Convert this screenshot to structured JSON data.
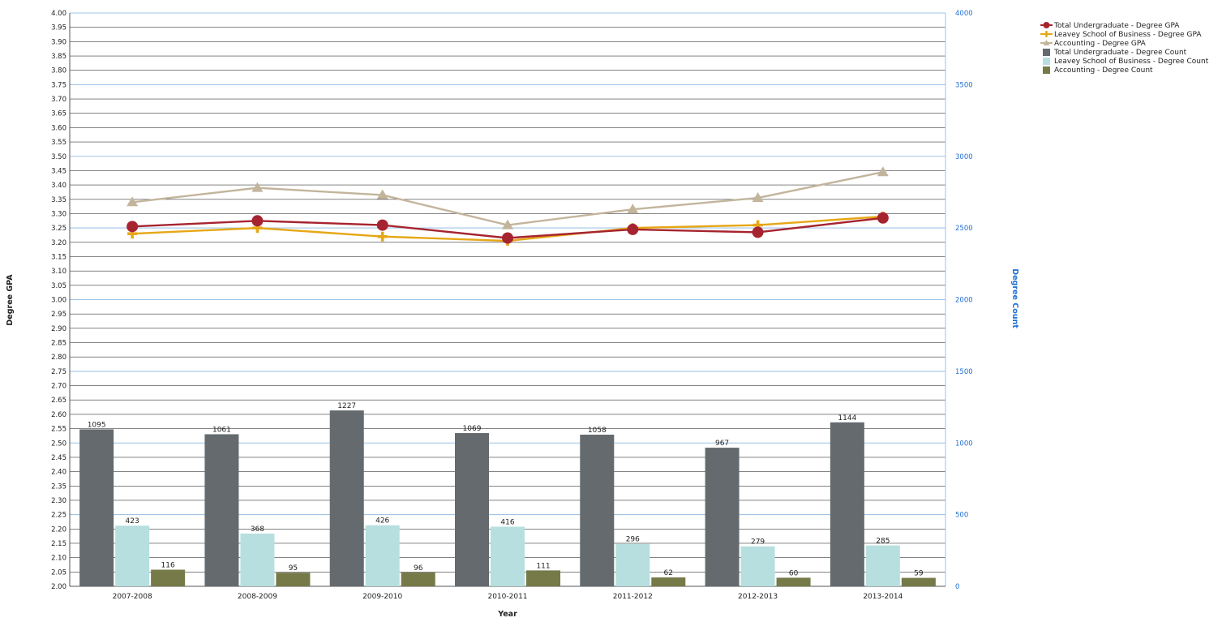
{
  "chart_data": {
    "type": "bar",
    "xlabel": "Year",
    "ylabel": "Degree GPA",
    "y2label": "Degree Count",
    "categories": [
      "2007-2008",
      "2008-2009",
      "2009-2010",
      "2010-2011",
      "2011-2012",
      "2012-2013",
      "2013-2014"
    ],
    "ylim": [
      2.0,
      4.0
    ],
    "y_ticks": [
      "2.00",
      "2.05",
      "2.10",
      "2.15",
      "2.20",
      "2.25",
      "2.30",
      "2.35",
      "2.40",
      "2.45",
      "2.50",
      "2.55",
      "2.60",
      "2.65",
      "2.70",
      "2.75",
      "2.80",
      "2.85",
      "2.90",
      "2.95",
      "3.00",
      "3.05",
      "3.10",
      "3.15",
      "3.20",
      "3.25",
      "3.30",
      "3.35",
      "3.40",
      "3.45",
      "3.50",
      "3.55",
      "3.60",
      "3.65",
      "3.70",
      "3.75",
      "3.80",
      "3.85",
      "3.90",
      "3.95",
      "4.00"
    ],
    "y2lim": [
      0,
      4000
    ],
    "y2_ticks": [
      "0",
      "500",
      "1000",
      "1500",
      "2000",
      "2500",
      "3000",
      "3500",
      "4000"
    ],
    "grid": true,
    "legend_position": "top-right",
    "bar_series": [
      {
        "name": "Total Undergraduate - Degree Count",
        "color": "#646a6d",
        "values": [
          1095,
          1061,
          1227,
          1069,
          1058,
          967,
          1144
        ]
      },
      {
        "name": "Leavey School of Business - Degree Count",
        "color": "#b7dfdf",
        "values": [
          423,
          368,
          426,
          416,
          296,
          279,
          285
        ]
      },
      {
        "name": "Accounting - Degree Count",
        "color": "#757a48",
        "values": [
          116,
          95,
          96,
          111,
          62,
          60,
          59
        ]
      }
    ],
    "line_series": [
      {
        "name": "Total Undergraduate - Degree GPA",
        "color": "#a6242f",
        "marker": "circle",
        "values": [
          3.255,
          3.275,
          3.26,
          3.215,
          3.245,
          3.235,
          3.285
        ]
      },
      {
        "name": "Leavey School of Business - Degree GPA",
        "color": "#e6a715",
        "marker": "plus",
        "values": [
          3.23,
          3.25,
          3.22,
          3.205,
          3.25,
          3.26,
          3.29
        ]
      },
      {
        "name": "Accounting - Degree GPA",
        "color": "#c3b59c",
        "marker": "triangle",
        "values": [
          3.34,
          3.39,
          3.365,
          3.26,
          3.315,
          3.355,
          3.445
        ]
      }
    ],
    "legend_order": [
      "Total Undergraduate - Degree GPA",
      "Leavey School of Business - Degree GPA",
      "Accounting - Degree GPA",
      "Total Undergraduate - Degree Count",
      "Leavey School of Business - Degree Count",
      "Accounting - Degree Count"
    ]
  }
}
